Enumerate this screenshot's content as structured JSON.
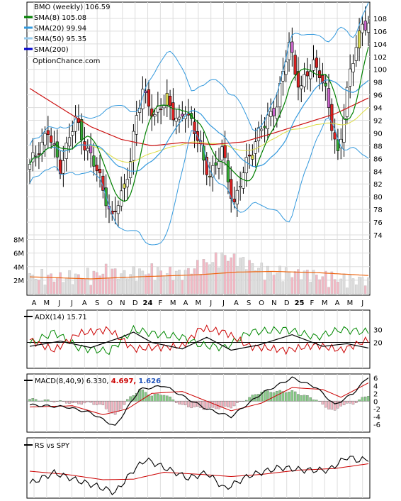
{
  "chart_data": {
    "type": "candlestick",
    "legend": [
      {
        "label": "BMO (weekly) 106.59",
        "color": ""
      },
      {
        "label": "SMA(8) 105.08",
        "color": "#008000"
      },
      {
        "label": "SMA(20) 99.94",
        "color": "#3399dd"
      },
      {
        "label": "SMA(50) 95.35",
        "color": "#99ccee"
      },
      {
        "label": "SMA(200)",
        "color": "#0000cc"
      }
    ],
    "source": "OptionChance.com",
    "price_axis": {
      "ylim": [
        73,
        110
      ],
      "ticks": [
        74,
        76,
        78,
        80,
        82,
        84,
        86,
        88,
        90,
        92,
        94,
        96,
        98,
        100,
        102,
        104,
        106,
        108
      ]
    },
    "volume_axis": {
      "ylim": [
        0,
        9
      ],
      "tick_labels": [
        "2M",
        "4M",
        "6M",
        "8M"
      ],
      "tick_values": [
        2,
        4,
        6,
        8
      ]
    },
    "x_labels": [
      {
        "label": "A",
        "bold": false
      },
      {
        "label": "M",
        "bold": false
      },
      {
        "label": "J",
        "bold": false
      },
      {
        "label": "J",
        "bold": false
      },
      {
        "label": "A",
        "bold": false
      },
      {
        "label": "S",
        "bold": false
      },
      {
        "label": "O",
        "bold": false
      },
      {
        "label": "N",
        "bold": false
      },
      {
        "label": "D",
        "bold": false
      },
      {
        "label": "24",
        "bold": true
      },
      {
        "label": "F",
        "bold": false
      },
      {
        "label": "M",
        "bold": false
      },
      {
        "label": "A",
        "bold": false
      },
      {
        "label": "M",
        "bold": false
      },
      {
        "label": "J",
        "bold": false
      },
      {
        "label": "J",
        "bold": false
      },
      {
        "label": "A",
        "bold": false
      },
      {
        "label": "S",
        "bold": false
      },
      {
        "label": "O",
        "bold": false
      },
      {
        "label": "N",
        "bold": false
      },
      {
        "label": "D",
        "bold": false
      },
      {
        "label": "25",
        "bold": true
      },
      {
        "label": "F",
        "bold": false
      },
      {
        "label": "M",
        "bold": false
      },
      {
        "label": "A",
        "bold": false
      },
      {
        "label": "M",
        "bold": false
      },
      {
        "label": "J",
        "bold": false
      }
    ],
    "close_keypoints": [
      [
        0,
        84.5
      ],
      [
        3,
        88
      ],
      [
        6,
        90
      ],
      [
        8,
        87
      ],
      [
        10,
        85
      ],
      [
        13,
        89
      ],
      [
        15,
        92
      ],
      [
        17,
        90
      ],
      [
        19,
        87
      ],
      [
        21,
        85
      ],
      [
        23,
        83
      ],
      [
        25,
        80
      ],
      [
        27,
        76
      ],
      [
        29,
        79
      ],
      [
        31,
        82
      ],
      [
        33,
        86
      ],
      [
        35,
        92
      ],
      [
        37,
        97
      ],
      [
        39,
        95
      ],
      [
        41,
        92
      ],
      [
        43,
        94
      ],
      [
        45,
        96
      ],
      [
        47,
        93
      ],
      [
        49,
        91
      ],
      [
        51,
        94
      ],
      [
        53,
        92
      ],
      [
        55,
        89
      ],
      [
        57,
        85
      ],
      [
        59,
        84
      ],
      [
        61,
        85
      ],
      [
        63,
        87
      ],
      [
        65,
        83
      ],
      [
        67,
        79
      ],
      [
        69,
        82
      ],
      [
        71,
        85
      ],
      [
        73,
        88
      ],
      [
        75,
        90
      ],
      [
        77,
        91
      ],
      [
        79,
        93
      ],
      [
        81,
        95
      ],
      [
        83,
        99
      ],
      [
        85,
        104
      ],
      [
        87,
        100
      ],
      [
        89,
        97
      ],
      [
        91,
        99
      ],
      [
        93,
        101
      ],
      [
        95,
        100
      ],
      [
        97,
        96
      ],
      [
        99,
        91
      ],
      [
        101,
        87
      ],
      [
        103,
        93
      ],
      [
        105,
        99
      ],
      [
        107,
        104
      ],
      [
        109,
        107.5
      ],
      [
        111,
        106.6
      ]
    ],
    "sma_200_keypoints": [
      [
        0,
        97
      ],
      [
        10,
        94
      ],
      [
        20,
        91
      ],
      [
        30,
        89
      ],
      [
        40,
        88
      ],
      [
        50,
        88.5
      ],
      [
        60,
        88.2
      ],
      [
        70,
        88.6
      ],
      [
        80,
        90
      ],
      [
        90,
        91.5
      ],
      [
        100,
        93
      ],
      [
        111,
        95.5
      ]
    ],
    "volume_keypoints": [
      [
        0,
        2.5
      ],
      [
        10,
        2.4
      ],
      [
        20,
        2.6
      ],
      [
        26,
        3.5
      ],
      [
        30,
        2.8
      ],
      [
        40,
        3.3
      ],
      [
        50,
        2.9
      ],
      [
        56,
        4.2
      ],
      [
        64,
        5.5
      ],
      [
        70,
        4.8
      ],
      [
        78,
        3.2
      ],
      [
        90,
        3.0
      ],
      [
        100,
        2.2
      ],
      [
        111,
        2.0
      ]
    ],
    "volume_avg_keypoints": [
      [
        0,
        2.5
      ],
      [
        20,
        2.2
      ],
      [
        35,
        2.5
      ],
      [
        55,
        2.8
      ],
      [
        68,
        3.2
      ],
      [
        80,
        3.3
      ],
      [
        95,
        3.1
      ],
      [
        111,
        2.7
      ]
    ],
    "adx": {
      "label": "ADX(14) 15.71",
      "ylim": [
        0,
        45
      ],
      "ticks": [
        20,
        30
      ],
      "reference": 20,
      "adx_keypoints": [
        [
          0,
          17
        ],
        [
          10,
          21
        ],
        [
          20,
          16
        ],
        [
          30,
          24
        ],
        [
          34,
          28
        ],
        [
          40,
          20
        ],
        [
          50,
          15
        ],
        [
          58,
          24
        ],
        [
          66,
          14
        ],
        [
          75,
          18
        ],
        [
          86,
          26
        ],
        [
          96,
          17
        ],
        [
          104,
          19
        ],
        [
          111,
          15.7
        ]
      ],
      "plus_di_keypoints": [
        [
          0,
          19
        ],
        [
          8,
          28
        ],
        [
          16,
          16
        ],
        [
          26,
          13
        ],
        [
          34,
          30
        ],
        [
          40,
          27
        ],
        [
          50,
          24
        ],
        [
          56,
          18
        ],
        [
          64,
          16
        ],
        [
          72,
          28
        ],
        [
          84,
          30
        ],
        [
          94,
          24
        ],
        [
          102,
          30
        ],
        [
          111,
          28
        ]
      ],
      "minus_di_keypoints": [
        [
          0,
          22
        ],
        [
          8,
          14
        ],
        [
          16,
          27
        ],
        [
          26,
          30
        ],
        [
          34,
          15
        ],
        [
          40,
          16
        ],
        [
          50,
          17
        ],
        [
          56,
          31
        ],
        [
          64,
          28
        ],
        [
          72,
          17
        ],
        [
          84,
          14
        ],
        [
          94,
          18
        ],
        [
          102,
          14
        ],
        [
          111,
          22
        ]
      ]
    },
    "macd": {
      "label": "MACD(8,40,9) 6.330,",
      "signal_label": "4.697,",
      "signal_color": "#cc0000",
      "hist_label": "1.626",
      "hist_color": "#2255bb",
      "ylim": [
        -8,
        7
      ],
      "ticks": [
        -6,
        -4,
        -2,
        0,
        2,
        4,
        6
      ],
      "macd_keypoints": [
        [
          0,
          -1
        ],
        [
          12,
          -1.5
        ],
        [
          20,
          -3
        ],
        [
          28,
          -6.5
        ],
        [
          36,
          3
        ],
        [
          44,
          4
        ],
        [
          52,
          0.5
        ],
        [
          58,
          -2
        ],
        [
          66,
          -4
        ],
        [
          76,
          2
        ],
        [
          86,
          6
        ],
        [
          94,
          3.5
        ],
        [
          100,
          -1
        ],
        [
          106,
          2
        ],
        [
          111,
          6.3
        ]
      ],
      "signal_keypoints": [
        [
          0,
          -1.5
        ],
        [
          14,
          -1.2
        ],
        [
          24,
          -3.5
        ],
        [
          32,
          -2
        ],
        [
          40,
          2
        ],
        [
          50,
          2.5
        ],
        [
          58,
          0
        ],
        [
          66,
          -2.5
        ],
        [
          76,
          -0.5
        ],
        [
          86,
          3.5
        ],
        [
          96,
          3
        ],
        [
          102,
          1
        ],
        [
          111,
          4.7
        ]
      ]
    },
    "rs": {
      "label": "RS vs SPY",
      "ylim": [
        0,
        10
      ],
      "rs_keypoints": [
        [
          0,
          2.5
        ],
        [
          8,
          4.5
        ],
        [
          16,
          3
        ],
        [
          22,
          2
        ],
        [
          28,
          0.8
        ],
        [
          34,
          5
        ],
        [
          38,
          7
        ],
        [
          44,
          5.5
        ],
        [
          52,
          3.5
        ],
        [
          58,
          4.5
        ],
        [
          64,
          1.5
        ],
        [
          72,
          4
        ],
        [
          82,
          5.5
        ],
        [
          90,
          5
        ],
        [
          98,
          5
        ],
        [
          104,
          7.5
        ],
        [
          108,
          6.8
        ],
        [
          111,
          7.2
        ]
      ],
      "rs_avg_keypoints": [
        [
          0,
          4.8
        ],
        [
          12,
          4.2
        ],
        [
          24,
          3.2
        ],
        [
          34,
          3.3
        ],
        [
          44,
          4.6
        ],
        [
          56,
          4.2
        ],
        [
          66,
          3.8
        ],
        [
          76,
          4.2
        ],
        [
          88,
          5
        ],
        [
          100,
          5.3
        ],
        [
          111,
          6.2
        ]
      ]
    }
  }
}
